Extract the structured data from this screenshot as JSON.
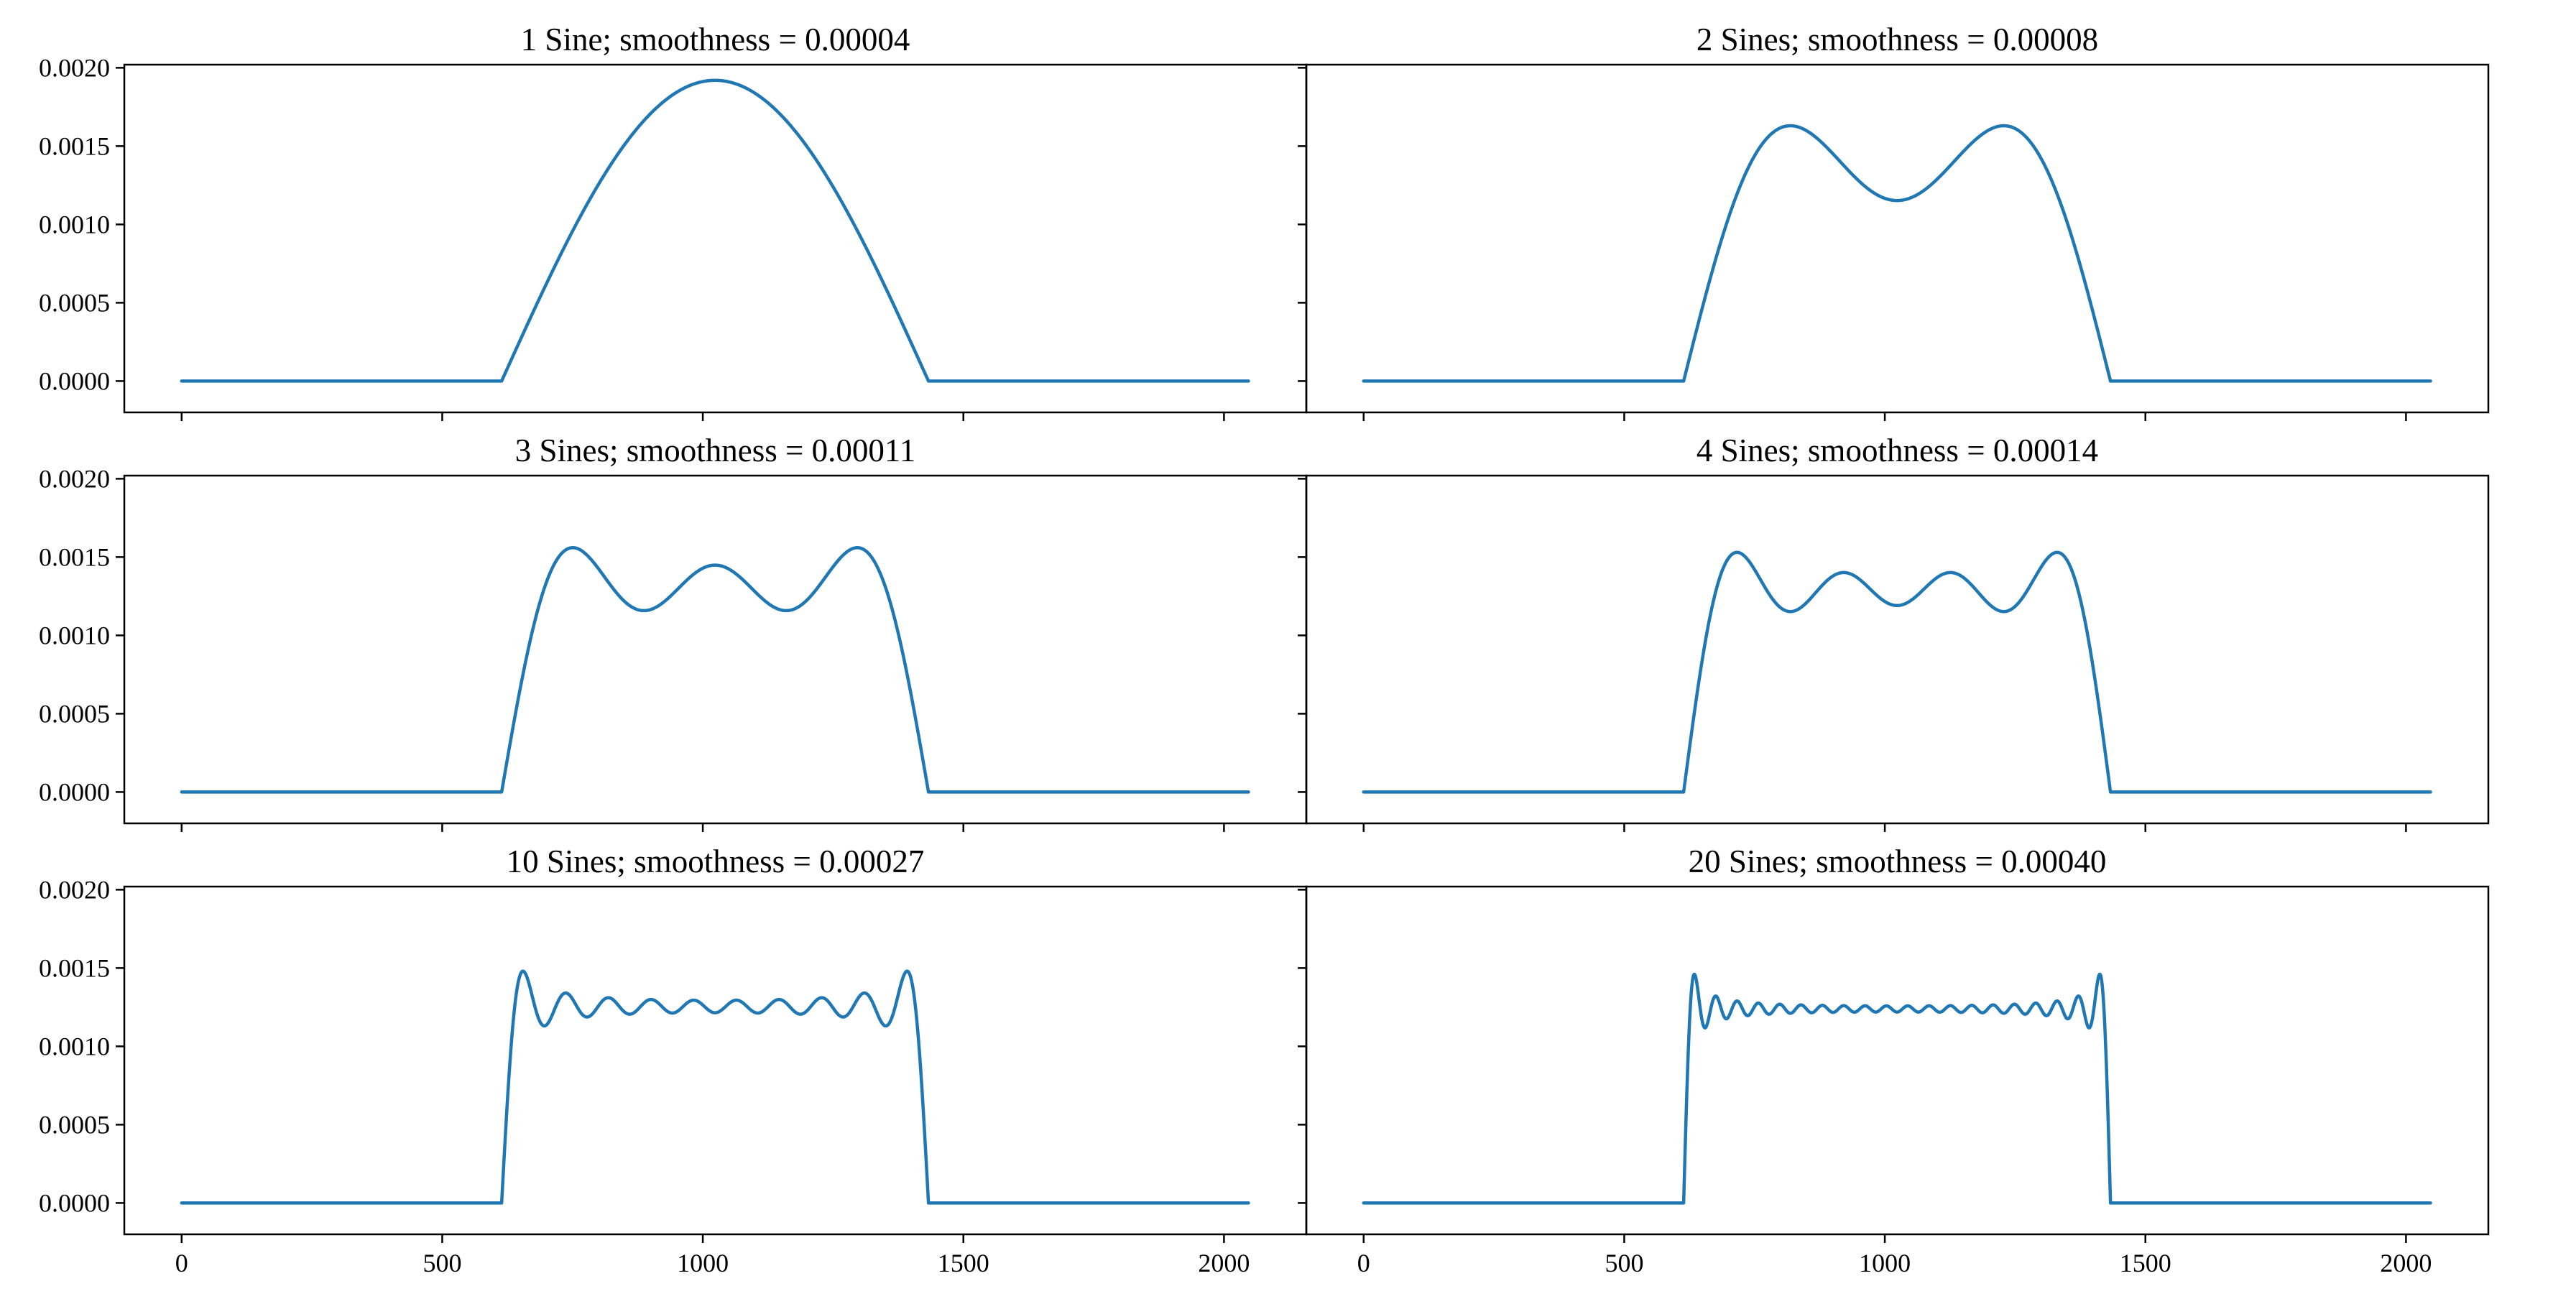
{
  "chart_data": {
    "type": "line",
    "layout": "3x2 grid",
    "shared_y_axis": true,
    "xlim": [
      -110,
      2158
    ],
    "ylim": [
      -0.0002,
      0.00202
    ],
    "x_ticks": [
      0,
      500,
      1000,
      1500,
      2000
    ],
    "x_tick_labels": [
      "0",
      "500",
      "1000",
      "1500",
      "2000"
    ],
    "y_ticks": [
      0,
      0.0005,
      0.001,
      0.0015,
      0.002
    ],
    "y_tick_labels": [
      "0.0000",
      "0.0005",
      "0.0010",
      "0.0015",
      "0.0020"
    ],
    "line_color": "#1f77b4",
    "x_domain": [
      0,
      2047
    ],
    "pulse_interval": [
      614,
      1433
    ],
    "panels": [
      {
        "title": "1 Sine; smoothness = 0.00004",
        "num_sines": 1,
        "smoothness": 4e-05,
        "peak": 0.00192
      },
      {
        "title": "2 Sines; smoothness = 0.00008",
        "num_sines": 2,
        "smoothness": 8e-05,
        "peak": 0.00163,
        "trough": 0.00116
      },
      {
        "title": "3 Sines; smoothness = 0.00011",
        "num_sines": 3,
        "smoothness": 0.00011,
        "peak": 0.00156,
        "trough": 0.00116
      },
      {
        "title": "4 Sines; smoothness = 0.00014",
        "num_sines": 4,
        "smoothness": 0.00014,
        "peak": 0.00153,
        "trough": 0.00116
      },
      {
        "title": "10 Sines; smoothness = 0.00027",
        "num_sines": 10,
        "smoothness": 0.00027,
        "peak": 0.00148,
        "trough": 0.00113
      },
      {
        "title": "20 Sines; smoothness = 0.00040",
        "num_sines": 20,
        "smoothness": 0.0004,
        "peak": 0.00146,
        "trough": 0.00111
      }
    ]
  }
}
